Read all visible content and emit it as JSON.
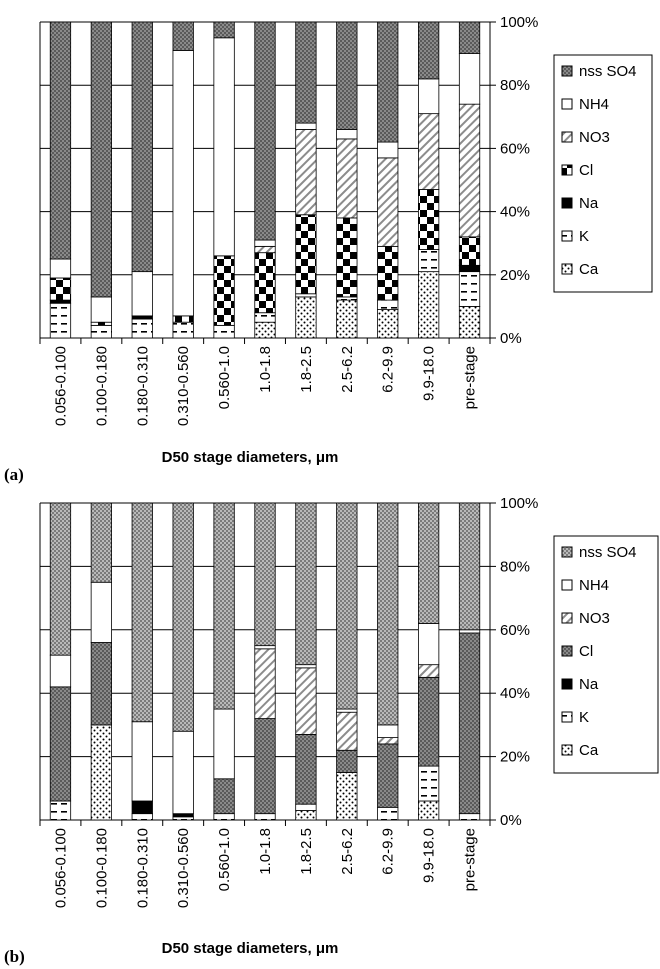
{
  "chart_data": [
    {
      "type": "bar",
      "stacked": true,
      "panel_label": "(a)",
      "xlabel": "D50 stage diameters, μm",
      "ylabel": "",
      "ylim": [
        0,
        100
      ],
      "y_ticks": [
        "0%",
        "20%",
        "40%",
        "60%",
        "80%",
        "100%"
      ],
      "legend_position": "right",
      "categories": [
        "0.056-0.100",
        "0.100-0.180",
        "0.180-0.310",
        "0.310-0.560",
        "0.560-1.0",
        "1.0-1.8",
        "1.8-2.5",
        "2.5-6.2",
        "6.2-9.9",
        "9.9-18.0",
        "pre-stage"
      ],
      "series": [
        {
          "name": "Ca",
          "values": [
            0,
            0,
            0,
            0,
            0,
            5,
            13,
            12,
            9,
            21,
            10
          ]
        },
        {
          "name": "K",
          "values": [
            11,
            4,
            6,
            5,
            4,
            3,
            1,
            1,
            3,
            7,
            11
          ]
        },
        {
          "name": "Na",
          "values": [
            1,
            0,
            1,
            0,
            0,
            0,
            0,
            0,
            0,
            0,
            2
          ]
        },
        {
          "name": "Cl",
          "values": [
            7,
            1,
            0,
            2,
            22,
            19,
            25,
            25,
            17,
            19,
            9
          ]
        },
        {
          "name": "NO3",
          "values": [
            0,
            0,
            0,
            0,
            0,
            2,
            27,
            25,
            28,
            24,
            42
          ]
        },
        {
          "name": "NH4",
          "values": [
            6,
            8,
            14,
            84,
            69,
            2,
            2,
            3,
            5,
            11,
            16
          ]
        },
        {
          "name": "nss SO4",
          "values": [
            75,
            87,
            79,
            9,
            5,
            69,
            32,
            34,
            38,
            18,
            10
          ]
        }
      ]
    },
    {
      "type": "bar",
      "stacked": true,
      "panel_label": "(b)",
      "xlabel": "D50 stage diameters, μm",
      "ylabel": "",
      "ylim": [
        0,
        100
      ],
      "y_ticks": [
        "0%",
        "20%",
        "40%",
        "60%",
        "80%",
        "100%"
      ],
      "legend_position": "right",
      "categories": [
        "0.056-0.100",
        "0.100-0.180",
        "0.180-0.310",
        "0.310-0.560",
        "0.560-1.0",
        "1.0-1.8",
        "1.8-2.5",
        "2.5-6.2",
        "6.2-9.9",
        "9.9-18.0",
        "pre-stage"
      ],
      "series": [
        {
          "name": "Ca",
          "values": [
            0,
            30,
            0,
            0,
            0,
            0,
            3,
            15,
            0,
            6,
            0
          ]
        },
        {
          "name": "K",
          "values": [
            6,
            0,
            2,
            1,
            2,
            2,
            2,
            0,
            4,
            11,
            2
          ]
        },
        {
          "name": "Na",
          "values": [
            0,
            0,
            4,
            1,
            0,
            0,
            0,
            0,
            0,
            0,
            0
          ]
        },
        {
          "name": "Cl",
          "values": [
            36,
            26,
            0,
            0,
            11,
            30,
            22,
            7,
            20,
            28,
            57
          ]
        },
        {
          "name": "NO3",
          "values": [
            0,
            0,
            0,
            0,
            0,
            22,
            21,
            12,
            2,
            4,
            0
          ]
        },
        {
          "name": "NH4",
          "values": [
            10,
            19,
            25,
            26,
            22,
            1,
            1,
            1,
            4,
            13,
            1
          ]
        },
        {
          "name": "nss SO4",
          "values": [
            48,
            25,
            69,
            72,
            65,
            45,
            51,
            65,
            70,
            38,
            40
          ]
        }
      ]
    }
  ],
  "legend": [
    "nss SO4",
    "NH4",
    "NO3",
    "Cl",
    "Na",
    "K",
    "Ca"
  ],
  "hatch_patterns": {
    "nss SO4": "crosshatch-dark",
    "NH4": "white",
    "NO3": "diagonal-stripes",
    "Cl": "checkerboard",
    "Na": "black-horizontal-band",
    "K": "horizontal-dashes",
    "Ca": "dotted"
  },
  "b_overrides": {
    "nss SO4": "crosshatch-light",
    "Cl": "crosshatch-dark"
  }
}
